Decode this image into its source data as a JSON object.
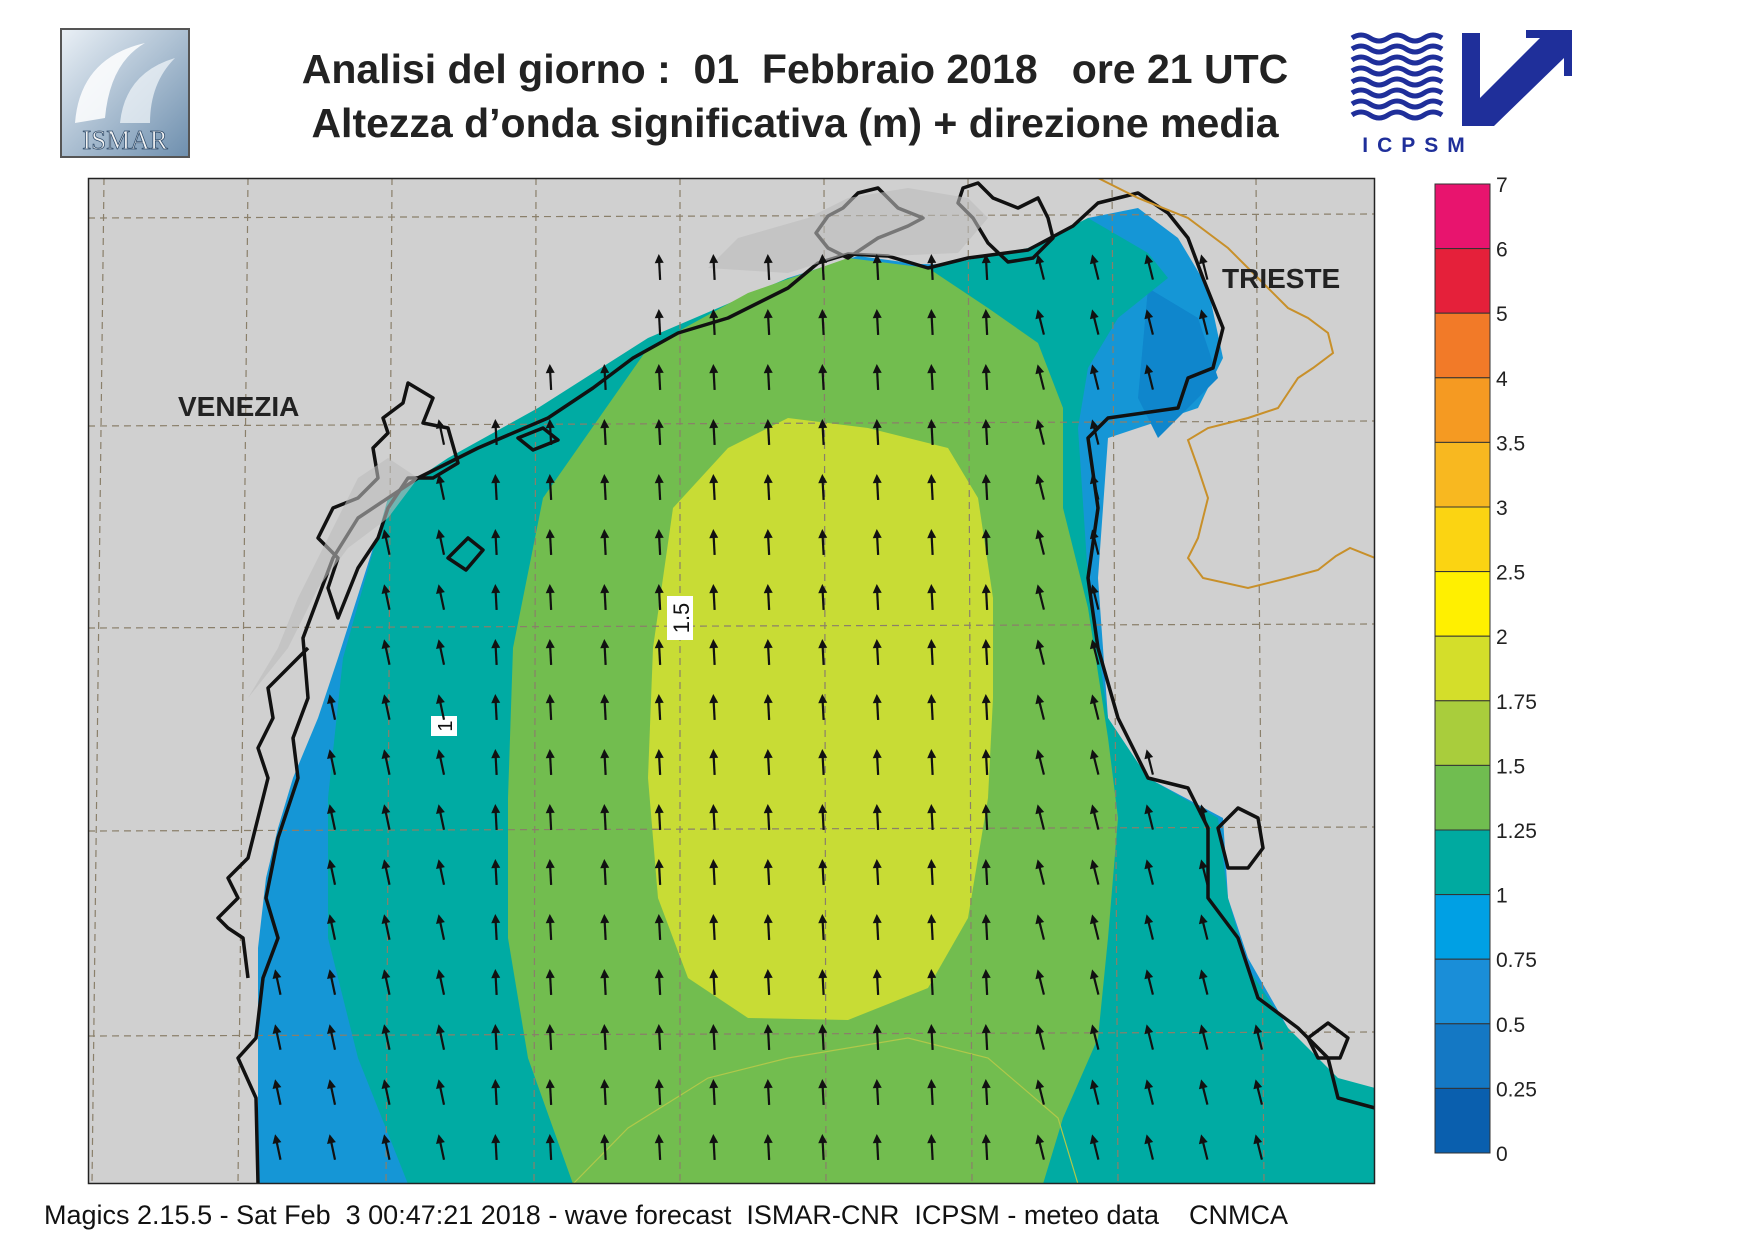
{
  "header": {
    "title_line1": "Analisi del giorno :  01  Febbraio 2018   ore 21 UTC",
    "title_line2": "Altezza d’onda significativa (m) + direzione media"
  },
  "logos": {
    "left_text": "ISMAR",
    "right_text": "ICPSM"
  },
  "map": {
    "city_labels": [
      "VENEZIA",
      "TRIESTE"
    ],
    "contour_labels": [
      "1.5",
      "1"
    ],
    "arrow_direction": "north",
    "colors": {
      "land": "#d0d0d0",
      "coast": "#111111",
      "border": "#c8902a",
      "grid": "#8a7f6a"
    }
  },
  "legend": {
    "labels": [
      "7",
      "6",
      "5",
      "4",
      "3.5",
      "3",
      "2.5",
      "2",
      "1.75",
      "1.5",
      "1.25",
      "1",
      "0.75",
      "0.5",
      "0.25",
      "0"
    ],
    "colors": [
      "#e8146e",
      "#e5203a",
      "#f27a28",
      "#f59a22",
      "#f8b820",
      "#fbd412",
      "#fff000",
      "#d4de2a",
      "#a9cd3c",
      "#70bd50",
      "#00aaa0",
      "#00a0e4",
      "#1a8ed8",
      "#1478c4",
      "#0a5fae"
    ]
  },
  "footer": {
    "text": "Magics 2.15.5 - Sat Feb  3 00:47:21 2018 - wave forecast  ISMAR-CNR  ICPSM - meteo data    CNMCA"
  }
}
